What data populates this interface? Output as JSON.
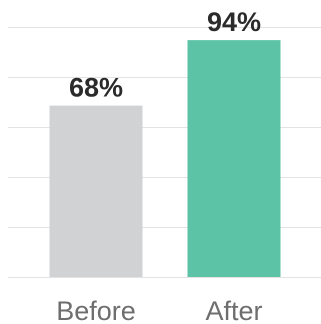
{
  "chart_data": {
    "type": "bar",
    "categories": [
      "Before",
      "After"
    ],
    "values": [
      68,
      94
    ],
    "value_labels": [
      "68%",
      "94%"
    ],
    "title": "",
    "xlabel": "",
    "ylabel": "",
    "ylim": [
      0,
      100
    ],
    "grid": true,
    "legend": "none",
    "colors": [
      "#d1d2d4",
      "#5cc3a7"
    ]
  }
}
